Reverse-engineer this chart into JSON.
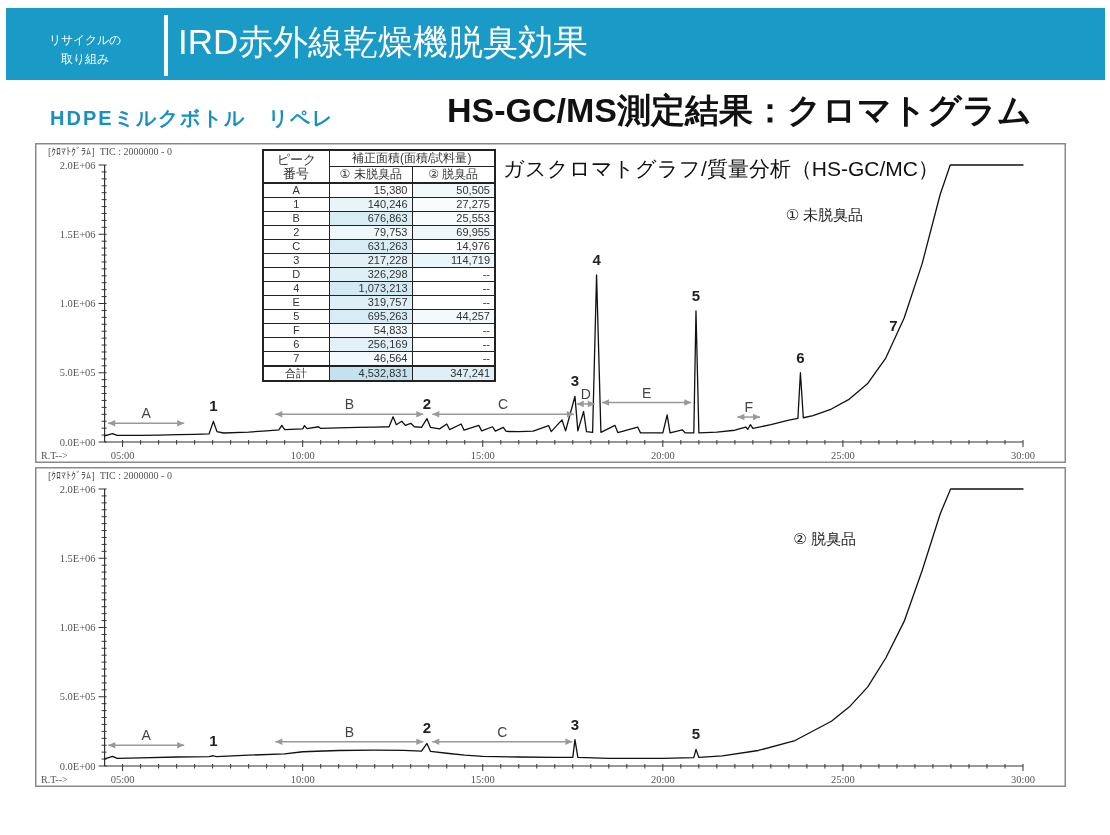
{
  "chart_data": [
    {
      "type": "line",
      "title": "HS-GC/MS測定結果：クロマトグラム",
      "subtitle": "[ｸﾛﾏﾄｸﾞﾗﾑ]  TIC : 2000000 - 0",
      "xlabel": "R.T-->",
      "annotations": [
        "リサイクルの取り組み",
        "IRD赤外線乾燥機脱臭効果",
        "HDPEミルクボトル　リペレ",
        "ガスクロマトグラフ/質量分析（HS-GC/MC）",
        {
          "text": "1",
          "x": 7.52,
          "y": 149000
        },
        {
          "text": "2",
          "x": 13.45,
          "y": 169000
        },
        {
          "text": "3",
          "x": 17.56,
          "y": 330000
        },
        {
          "text": "4",
          "x": 18.16,
          "y": 1206000
        },
        {
          "text": "5",
          "x": 20.92,
          "y": 946000
        },
        {
          "text": "6",
          "x": 23.82,
          "y": 500000
        },
        {
          "text": "7",
          "x": 26.4,
          "y": 730000
        }
      ],
      "xlim": [
        4.5,
        30
      ],
      "ylim": [
        0,
        2000000
      ],
      "xticks": [
        {
          "value": 5,
          "label": "05:00"
        },
        {
          "value": 5.5,
          "label": null
        },
        {
          "value": 6,
          "label": null
        },
        {
          "value": 6.5,
          "label": null
        },
        {
          "value": 7,
          "label": null
        },
        {
          "value": 7.5,
          "label": null
        },
        {
          "value": 8,
          "label": null
        },
        {
          "value": 8.5,
          "label": null
        },
        {
          "value": 9,
          "label": null
        },
        {
          "value": 9.5,
          "label": null
        },
        {
          "value": 10,
          "label": "10:00"
        },
        {
          "value": 10.5,
          "label": null
        },
        {
          "value": 11,
          "label": null
        },
        {
          "value": 11.5,
          "label": null
        },
        {
          "value": 12,
          "label": null
        },
        {
          "value": 12.5,
          "label": null
        },
        {
          "value": 13,
          "label": null
        },
        {
          "value": 13.5,
          "label": null
        },
        {
          "value": 14,
          "label": null
        },
        {
          "value": 14.5,
          "label": null
        },
        {
          "value": 15,
          "label": "15:00"
        },
        {
          "value": 15.5,
          "label": null
        },
        {
          "value": 16,
          "label": null
        },
        {
          "value": 16.5,
          "label": null
        },
        {
          "value": 17,
          "label": null
        },
        {
          "value": 17.5,
          "label": null
        },
        {
          "value": 18,
          "label": null
        },
        {
          "value": 18.5,
          "label": null
        },
        {
          "value": 19,
          "label": null
        },
        {
          "value": 19.5,
          "label": null
        },
        {
          "value": 20,
          "label": "20:00"
        },
        {
          "value": 20.5,
          "label": null
        },
        {
          "value": 21,
          "label": null
        },
        {
          "value": 21.5,
          "label": null
        },
        {
          "value": 22,
          "label": null
        },
        {
          "value": 22.5,
          "label": null
        },
        {
          "value": 23,
          "label": null
        },
        {
          "value": 23.5,
          "label": null
        },
        {
          "value": 24,
          "label": null
        },
        {
          "value": 24.5,
          "label": null
        },
        {
          "value": 25,
          "label": "25:00"
        },
        {
          "value": 25.5,
          "label": null
        },
        {
          "value": 26,
          "label": null
        },
        {
          "value": 26.5,
          "label": null
        },
        {
          "value": 27,
          "label": null
        },
        {
          "value": 27.5,
          "label": null
        },
        {
          "value": 28,
          "label": null
        },
        {
          "value": 28.5,
          "label": null
        },
        {
          "value": 29,
          "label": null
        },
        {
          "value": 29.5,
          "label": null
        },
        {
          "value": 30,
          "label": "30:00"
        }
      ],
      "yticks": [
        {
          "value": 0,
          "label": "0.0E+00"
        },
        {
          "value": 50000,
          "label": null
        },
        {
          "value": 100000,
          "label": null
        },
        {
          "value": 150000,
          "label": null
        },
        {
          "value": 200000,
          "label": null
        },
        {
          "value": 250000,
          "label": null
        },
        {
          "value": 300000,
          "label": null
        },
        {
          "value": 350000,
          "label": null
        },
        {
          "value": 400000,
          "label": null
        },
        {
          "value": 450000,
          "label": null
        },
        {
          "value": 500000,
          "label": "5.0E+05"
        },
        {
          "value": 550000,
          "label": null
        },
        {
          "value": 600000,
          "label": null
        },
        {
          "value": 650000,
          "label": null
        },
        {
          "value": 700000,
          "label": null
        },
        {
          "value": 750000,
          "label": null
        },
        {
          "value": 800000,
          "label": null
        },
        {
          "value": 850000,
          "label": null
        },
        {
          "value": 900000,
          "label": null
        },
        {
          "value": 950000,
          "label": null
        },
        {
          "value": 1000000,
          "label": "1.0E+06"
        },
        {
          "value": 1050000,
          "label": null
        },
        {
          "value": 1100000,
          "label": null
        },
        {
          "value": 1150000,
          "label": null
        },
        {
          "value": 1200000,
          "label": null
        },
        {
          "value": 1250000,
          "label": null
        },
        {
          "value": 1300000,
          "label": null
        },
        {
          "value": 1350000,
          "label": null
        },
        {
          "value": 1400000,
          "label": null
        },
        {
          "value": 1450000,
          "label": null
        },
        {
          "value": 1500000,
          "label": "1.5E+06"
        },
        {
          "value": 1550000,
          "label": null
        },
        {
          "value": 1600000,
          "label": null
        },
        {
          "value": 1650000,
          "label": null
        },
        {
          "value": 1700000,
          "label": null
        },
        {
          "value": 1750000,
          "label": null
        },
        {
          "value": 1800000,
          "label": null
        },
        {
          "value": 1850000,
          "label": null
        },
        {
          "value": 1900000,
          "label": null
        },
        {
          "value": 1950000,
          "label": null
        },
        {
          "value": 2000000,
          "label": "2.0E+06"
        }
      ],
      "series": [
        {
          "name": "① 未脱臭品",
          "color": "#111111",
          "x": [
            4.5,
            4.72,
            4.85,
            5.5,
            6.0,
            6.56,
            7.0,
            7.4,
            7.52,
            7.62,
            7.8,
            8.5,
            9.0,
            9.34,
            9.42,
            9.5,
            10.0,
            10.05,
            10.12,
            10.44,
            10.5,
            11.0,
            11.51,
            12.0,
            12.4,
            12.51,
            12.6,
            12.75,
            12.85,
            13.0,
            13.1,
            13.3,
            13.45,
            13.55,
            13.8,
            14.0,
            14.08,
            14.4,
            14.48,
            14.89,
            14.97,
            15.27,
            15.35,
            15.57,
            15.65,
            16.0,
            16.4,
            16.83,
            16.9,
            17.2,
            17.3,
            17.56,
            17.64,
            17.8,
            17.88,
            18.05,
            18.16,
            18.28,
            18.67,
            18.75,
            19.3,
            19.38,
            20.0,
            20.12,
            20.2,
            20.54,
            20.62,
            20.86,
            20.92,
            21.0,
            21.5,
            22.0,
            22.3,
            22.36,
            22.43,
            22.5,
            23.0,
            23.5,
            23.75,
            23.82,
            23.9,
            24.17,
            24.68,
            25.18,
            25.68,
            26.19,
            26.7,
            27.2,
            27.7,
            27.98,
            30.0
          ],
          "values": [
            45000,
            60000,
            48000,
            48000,
            50000,
            53000,
            55000,
            58000,
            149000,
            75000,
            65000,
            72000,
            80000,
            87000,
            120000,
            90000,
            95000,
            118000,
            96000,
            110000,
            98000,
            102000,
            105000,
            108000,
            110000,
            182000,
            125000,
            150000,
            120000,
            135000,
            110000,
            105000,
            169000,
            105000,
            95000,
            130000,
            90000,
            130000,
            85000,
            120000,
            80000,
            110000,
            78000,
            105000,
            76000,
            75000,
            78000,
            118000,
            75000,
            160000,
            80000,
            330000,
            80000,
            220000,
            75000,
            70000,
            1206000,
            70000,
            120000,
            68000,
            108000,
            66000,
            66000,
            195000,
            66000,
            88000,
            66000,
            66000,
            946000,
            66000,
            72000,
            85000,
            108000,
            92000,
            125000,
            98000,
            125000,
            158000,
            170000,
            500000,
            175000,
            190000,
            238000,
            310000,
            420000,
            606000,
            895000,
            1288000,
            1787000,
            2000000,
            2000000
          ]
        },
        {
          "name": "A",
          "color": "#999999",
          "marker": "triangle",
          "x": [
            4.6,
            6.71
          ],
          "values": [
            135000,
            135000
          ]
        },
        {
          "name": "B",
          "color": "#999999",
          "marker": "triangle",
          "x": [
            9.24,
            13.35
          ],
          "values": [
            200000,
            200000
          ]
        },
        {
          "name": "C",
          "color": "#999999",
          "marker": "triangle",
          "x": [
            13.6,
            17.53
          ],
          "values": [
            200000,
            200000
          ]
        },
        {
          "name": "D",
          "color": "#999999",
          "marker": "triangle",
          "x": [
            17.61,
            18.11
          ],
          "values": [
            275000,
            275000
          ]
        },
        {
          "name": "E",
          "color": "#999999",
          "marker": "triangle",
          "x": [
            18.31,
            20.79
          ],
          "values": [
            285000,
            285000
          ]
        },
        {
          "name": "F",
          "color": "#999999",
          "marker": "triangle",
          "x": [
            22.07,
            22.7
          ],
          "values": [
            180000,
            180000
          ]
        }
      ]
    },
    {
      "type": "heatmap",
      "title": "補正面積(面積/試料量)",
      "ylabel": "ピーク番号",
      "categories": [
        "① 未脱臭品",
        "② 脱臭品"
      ],
      "y_categories": [
        "A",
        "1",
        "B",
        "2",
        "C",
        "3",
        "D",
        "4",
        "E",
        "5",
        "F",
        "6",
        "7",
        "合計"
      ],
      "cells": [
        [
          15380,
          50505
        ],
        [
          140246,
          27275
        ],
        [
          676863,
          25553
        ],
        [
          79753,
          69955
        ],
        [
          631263,
          14976
        ],
        [
          217228,
          114719
        ],
        [
          326298,
          null
        ],
        [
          1073213,
          null
        ],
        [
          319757,
          null
        ],
        [
          695263,
          44257
        ],
        [
          54833,
          null
        ],
        [
          256169,
          null
        ],
        [
          46564,
          null
        ],
        [
          4532831,
          347241
        ]
      ],
      "cell_labels": [
        [
          "15,380",
          "50,505"
        ],
        [
          "140,246",
          "27,275"
        ],
        [
          "676,863",
          "25,553"
        ],
        [
          "79,753",
          "69,955"
        ],
        [
          "631,263",
          "14,976"
        ],
        [
          "217,228",
          "114,719"
        ],
        [
          "326,298",
          "--"
        ],
        [
          "1,073,213",
          "--"
        ],
        [
          "319,757",
          "--"
        ],
        [
          "695,263",
          "44,257"
        ],
        [
          "54,833",
          "--"
        ],
        [
          "256,169",
          "--"
        ],
        [
          "46,564",
          "--"
        ],
        [
          "4,532,831",
          "347,241"
        ]
      ]
    },
    {
      "type": "line",
      "subtitle": "[ｸﾛﾏﾄｸﾞﾗﾑ]  TIC : 2000000 - 0",
      "xlabel": "R.T-->",
      "annotations": [
        {
          "text": "1",
          "x": 7.52,
          "y": 74000
        },
        {
          "text": "2",
          "x": 13.45,
          "y": 163000
        },
        {
          "text": "3",
          "x": 17.56,
          "y": 191000
        },
        {
          "text": "5",
          "x": 20.92,
          "y": 120000
        }
      ],
      "xlim": [
        4.5,
        30
      ],
      "ylim": [
        0,
        2000000
      ],
      "xticks": [
        {
          "value": 5,
          "label": "05:00"
        },
        {
          "value": 5.5,
          "label": null
        },
        {
          "value": 6,
          "label": null
        },
        {
          "value": 6.5,
          "label": null
        },
        {
          "value": 7,
          "label": null
        },
        {
          "value": 7.5,
          "label": null
        },
        {
          "value": 8,
          "label": null
        },
        {
          "value": 8.5,
          "label": null
        },
        {
          "value": 9,
          "label": null
        },
        {
          "value": 9.5,
          "label": null
        },
        {
          "value": 10,
          "label": "10:00"
        },
        {
          "value": 10.5,
          "label": null
        },
        {
          "value": 11,
          "label": null
        },
        {
          "value": 11.5,
          "label": null
        },
        {
          "value": 12,
          "label": null
        },
        {
          "value": 12.5,
          "label": null
        },
        {
          "value": 13,
          "label": null
        },
        {
          "value": 13.5,
          "label": null
        },
        {
          "value": 14,
          "label": null
        },
        {
          "value": 14.5,
          "label": null
        },
        {
          "value": 15,
          "label": "15:00"
        },
        {
          "value": 15.5,
          "label": null
        },
        {
          "value": 16,
          "label": null
        },
        {
          "value": 16.5,
          "label": null
        },
        {
          "value": 17,
          "label": null
        },
        {
          "value": 17.5,
          "label": null
        },
        {
          "value": 18,
          "label": null
        },
        {
          "value": 18.5,
          "label": null
        },
        {
          "value": 19,
          "label": null
        },
        {
          "value": 19.5,
          "label": null
        },
        {
          "value": 20,
          "label": "20:00"
        },
        {
          "value": 20.5,
          "label": null
        },
        {
          "value": 21,
          "label": null
        },
        {
          "value": 21.5,
          "label": null
        },
        {
          "value": 22,
          "label": null
        },
        {
          "value": 22.5,
          "label": null
        },
        {
          "value": 23,
          "label": null
        },
        {
          "value": 23.5,
          "label": null
        },
        {
          "value": 24,
          "label": null
        },
        {
          "value": 24.5,
          "label": null
        },
        {
          "value": 25,
          "label": "25:00"
        },
        {
          "value": 25.5,
          "label": null
        },
        {
          "value": 26,
          "label": null
        },
        {
          "value": 26.5,
          "label": null
        },
        {
          "value": 27,
          "label": null
        },
        {
          "value": 27.5,
          "label": null
        },
        {
          "value": 28,
          "label": null
        },
        {
          "value": 28.5,
          "label": null
        },
        {
          "value": 29,
          "label": null
        },
        {
          "value": 29.5,
          "label": null
        },
        {
          "value": 30,
          "label": "30:00"
        }
      ],
      "yticks": [
        {
          "value": 0,
          "label": "0.0E+00"
        },
        {
          "value": 50000,
          "label": null
        },
        {
          "value": 100000,
          "label": null
        },
        {
          "value": 150000,
          "label": null
        },
        {
          "value": 200000,
          "label": null
        },
        {
          "value": 250000,
          "label": null
        },
        {
          "value": 300000,
          "label": null
        },
        {
          "value": 350000,
          "label": null
        },
        {
          "value": 400000,
          "label": null
        },
        {
          "value": 450000,
          "label": null
        },
        {
          "value": 500000,
          "label": "5.0E+05"
        },
        {
          "value": 550000,
          "label": null
        },
        {
          "value": 600000,
          "label": null
        },
        {
          "value": 650000,
          "label": null
        },
        {
          "value": 700000,
          "label": null
        },
        {
          "value": 750000,
          "label": null
        },
        {
          "value": 800000,
          "label": null
        },
        {
          "value": 850000,
          "label": null
        },
        {
          "value": 900000,
          "label": null
        },
        {
          "value": 950000,
          "label": null
        },
        {
          "value": 1000000,
          "label": "1.0E+06"
        },
        {
          "value": 1050000,
          "label": null
        },
        {
          "value": 1100000,
          "label": null
        },
        {
          "value": 1150000,
          "label": null
        },
        {
          "value": 1200000,
          "label": null
        },
        {
          "value": 1250000,
          "label": null
        },
        {
          "value": 1300000,
          "label": null
        },
        {
          "value": 1350000,
          "label": null
        },
        {
          "value": 1400000,
          "label": null
        },
        {
          "value": 1450000,
          "label": null
        },
        {
          "value": 1500000,
          "label": "1.5E+06"
        },
        {
          "value": 1550000,
          "label": null
        },
        {
          "value": 1600000,
          "label": null
        },
        {
          "value": 1650000,
          "label": null
        },
        {
          "value": 1700000,
          "label": null
        },
        {
          "value": 1750000,
          "label": null
        },
        {
          "value": 1800000,
          "label": null
        },
        {
          "value": 1850000,
          "label": null
        },
        {
          "value": 1900000,
          "label": null
        },
        {
          "value": 1950000,
          "label": null
        },
        {
          "value": 2000000,
          "label": "2.0E+06"
        }
      ],
      "series": [
        {
          "name": "② 脱臭品",
          "color": "#111111",
          "x": [
            4.5,
            4.72,
            4.85,
            5.5,
            6.5,
            7.4,
            7.52,
            7.6,
            8.5,
            9.5,
            10.0,
            11.0,
            12.0,
            12.8,
            13.3,
            13.45,
            13.55,
            14.0,
            14.5,
            15.0,
            16.0,
            17.0,
            17.5,
            17.56,
            17.64,
            18.5,
            20.0,
            20.86,
            20.92,
            21.0,
            21.65,
            22.65,
            23.67,
            24.68,
            25.18,
            25.69,
            26.19,
            26.7,
            27.2,
            27.7,
            27.99,
            30.0
          ],
          "values": [
            52000,
            70000,
            55000,
            58000,
            65000,
            68000,
            74000,
            68000,
            78000,
            88000,
            103000,
            112000,
            115000,
            113000,
            108000,
            163000,
            105000,
            92000,
            78000,
            70000,
            65000,
            62000,
            62000,
            191000,
            62000,
            55000,
            55000,
            60000,
            120000,
            62000,
            73000,
            112000,
            184000,
            323000,
            427000,
            571000,
            780000,
            1044000,
            1412000,
            1820000,
            2000000,
            2000000
          ]
        },
        {
          "name": "A",
          "color": "#999999",
          "marker": "triangle",
          "x": [
            4.6,
            6.71
          ],
          "values": [
            150000,
            150000
          ]
        },
        {
          "name": "B",
          "color": "#999999",
          "marker": "triangle",
          "x": [
            9.24,
            13.35
          ],
          "values": [
            175000,
            175000
          ]
        },
        {
          "name": "C",
          "color": "#999999",
          "marker": "triangle",
          "x": [
            13.6,
            17.49
          ],
          "values": [
            175000,
            175000
          ]
        }
      ]
    }
  ]
}
